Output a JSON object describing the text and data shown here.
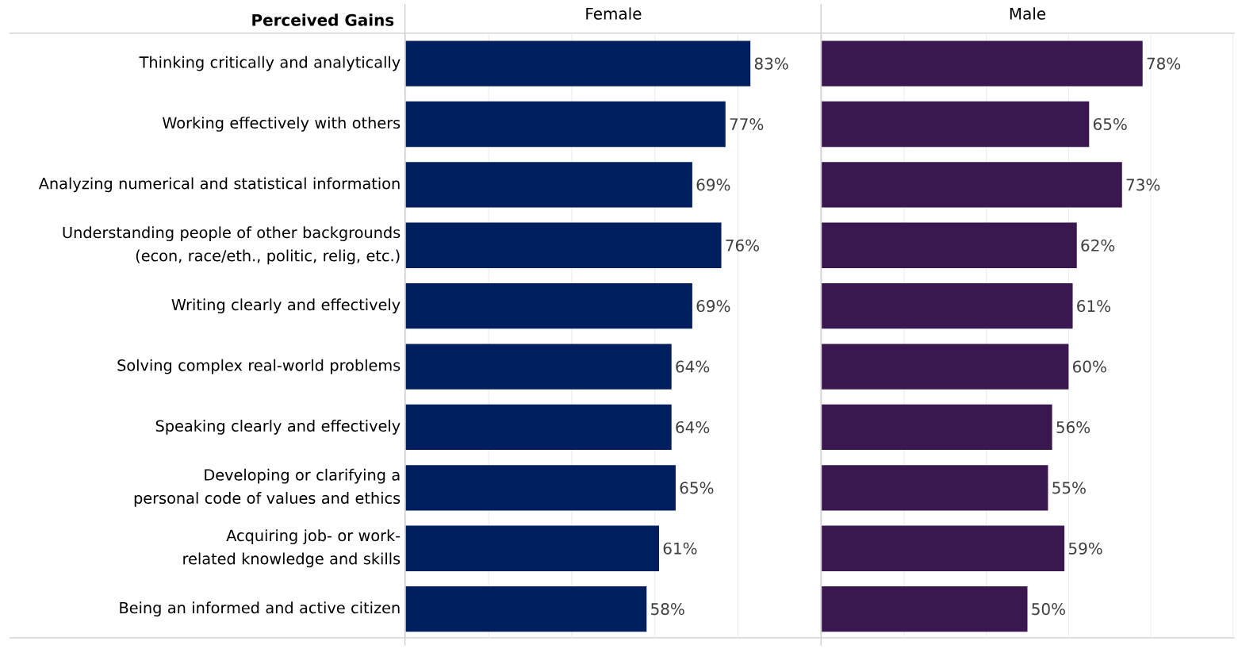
{
  "chart_data": [
    {
      "type": "bar",
      "orientation": "horizontal",
      "title": "Female",
      "ylabel": "Perceived Gains",
      "categories": [
        "Thinking critically and analytically",
        "Working effectively with others",
        "Analyzing numerical and statistical information",
        "Understanding people of other backgrounds (econ, race/eth., politic, relig, etc.)",
        "Writing clearly and effectively",
        "Solving complex real-world problems",
        "Speaking clearly and effectively",
        "Developing or clarifying a personal code of values and ethics",
        "Acquiring job- or work-related knowledge and skills",
        "Being an informed and active citizen"
      ],
      "values": [
        83,
        77,
        69,
        76,
        69,
        64,
        64,
        65,
        61,
        58
      ],
      "value_labels": [
        "83%",
        "77%",
        "69%",
        "76%",
        "69%",
        "64%",
        "64%",
        "65%",
        "61%",
        "58%"
      ],
      "color": "#011e5e",
      "xlim": [
        0,
        100
      ],
      "xticks": [
        {
          "value": 0,
          "label": null
        },
        {
          "value": 20,
          "label": null
        },
        {
          "value": 40,
          "label": null
        },
        {
          "value": 60,
          "label": null
        },
        {
          "value": 80,
          "label": null
        },
        {
          "value": 100,
          "label": null
        }
      ],
      "grid": "x",
      "tick_labels": "y"
    },
    {
      "type": "bar",
      "orientation": "horizontal",
      "title": "Male",
      "categories": [
        null,
        null,
        null,
        null,
        null,
        null,
        null,
        null,
        null,
        null
      ],
      "values": [
        78,
        65,
        73,
        62,
        61,
        60,
        56,
        55,
        59,
        50
      ],
      "value_labels": [
        "78%",
        "65%",
        "73%",
        "62%",
        "61%",
        "60%",
        "56%",
        "55%",
        "59%",
        "50%"
      ],
      "color": "#3b174f",
      "xlim": [
        0,
        100
      ],
      "xticks": [
        {
          "value": 0,
          "label": null
        },
        {
          "value": 20,
          "label": null
        },
        {
          "value": 40,
          "label": null
        },
        {
          "value": 60,
          "label": null
        },
        {
          "value": 80,
          "label": null
        },
        {
          "value": 100,
          "label": null
        }
      ],
      "grid": "x",
      "tick_labels": false
    }
  ]
}
